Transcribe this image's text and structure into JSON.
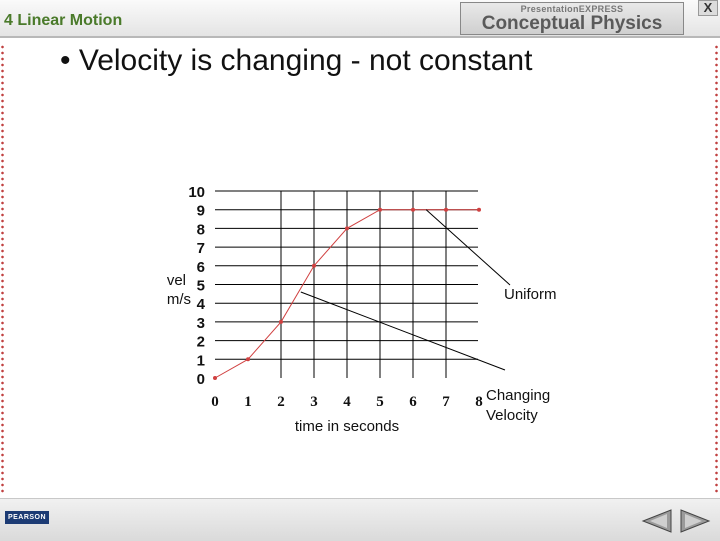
{
  "header": {
    "chapter_title": "4 Linear Motion",
    "brand_small": "PresentationEXPRESS",
    "brand_main": "Conceptual Physics",
    "close_label": "X"
  },
  "slide": {
    "bullet": "• Velocity is changing - not constant"
  },
  "footer": {
    "publisher": "PEARSON",
    "prev_icon": "prev-triangle-icon",
    "next_icon": "next-triangle-icon"
  },
  "colors": {
    "header_text": "#4a7a2a",
    "data_line": "#d04040",
    "dots": "#c04040"
  },
  "chart_data": {
    "type": "line",
    "xlabel": "time in seconds",
    "ylabel_line1": "vel",
    "ylabel_line2": "m/s",
    "x_ticks": [
      0,
      1,
      2,
      3,
      4,
      5,
      6,
      7,
      8
    ],
    "y_ticks": [
      0,
      1,
      2,
      3,
      4,
      5,
      6,
      7,
      8,
      9,
      10
    ],
    "xlim": [
      0,
      8
    ],
    "ylim": [
      0,
      10
    ],
    "grid": true,
    "points": [
      {
        "x": 0,
        "y": 0
      },
      {
        "x": 1,
        "y": 1
      },
      {
        "x": 2,
        "y": 3
      },
      {
        "x": 3,
        "y": 6
      },
      {
        "x": 4,
        "y": 8
      },
      {
        "x": 5,
        "y": 9
      },
      {
        "x": 6,
        "y": 9
      },
      {
        "x": 7,
        "y": 9
      },
      {
        "x": 8,
        "y": 9
      }
    ],
    "annotations": [
      {
        "label": "Uniform",
        "points_to": {
          "x": 6.4,
          "y": 9
        }
      },
      {
        "label_line1": "Changing",
        "label_line2": "Velocity",
        "points_to": {
          "x": 2.6,
          "y": 4.6
        }
      }
    ]
  }
}
